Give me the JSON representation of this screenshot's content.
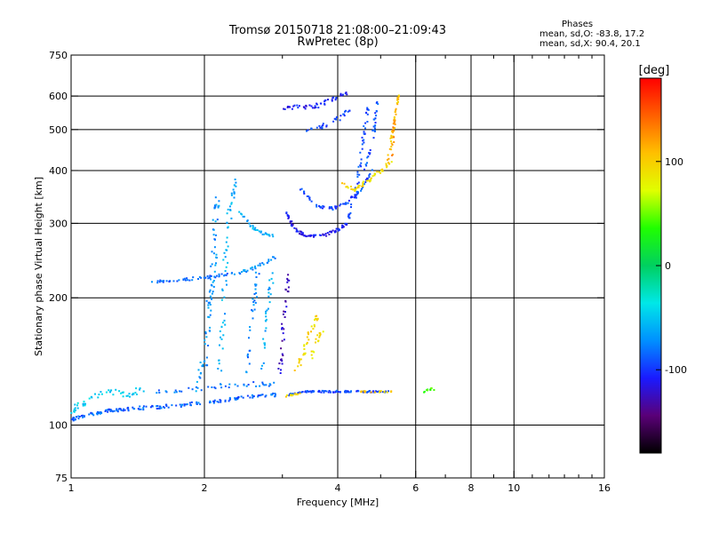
{
  "title": "Tromsø 20150718 21:08:00–21:09:43",
  "subtitle": "RwPretec (8p)",
  "phases": {
    "heading": "Phases",
    "o_line": "mean, sd,O: -83.8, 17.2",
    "x_line": "mean, sd,X:  90.4, 20.1"
  },
  "colorbar": {
    "label": "[deg]",
    "range": [
      -180,
      180
    ],
    "ticks": [
      {
        "value": 100,
        "label": "100"
      },
      {
        "value": 0,
        "label": "0"
      },
      {
        "value": -100,
        "label": "-100"
      }
    ],
    "stops": [
      "#000000",
      "#5a0078",
      "#1a1aff",
      "#0090ff",
      "#00e8e8",
      "#00d060",
      "#20ff00",
      "#e0ff00",
      "#ffc000",
      "#ff6000",
      "#ff0000"
    ]
  },
  "chart_data": {
    "type": "scatter",
    "title": "Tromsø 20150718 21:08:00–21:09:43",
    "subtitle": "RwPretec (8p)",
    "xlabel": "Frequency [MHz]",
    "ylabel": "Stationary phase Virtual Height [km]",
    "x_scale": "log",
    "y_scale": "log",
    "xlim": [
      1,
      16
    ],
    "ylim": [
      75,
      750
    ],
    "x_ticks": [
      {
        "value": 1,
        "label": "1"
      },
      {
        "value": 2,
        "label": "2"
      },
      {
        "value": 4,
        "label": "4"
      },
      {
        "value": 6,
        "label": "6"
      },
      {
        "value": 8,
        "label": "8"
      },
      {
        "value": 10,
        "label": "10"
      },
      {
        "value": 16,
        "label": "16"
      }
    ],
    "x_minor": [
      3,
      5,
      7,
      9,
      11,
      12,
      13,
      14,
      15
    ],
    "x_grid": [
      2,
      4,
      6,
      8,
      10
    ],
    "y_ticks": [
      {
        "value": 75,
        "label": "75"
      },
      {
        "value": 100,
        "label": "100"
      },
      {
        "value": 200,
        "label": "200"
      },
      {
        "value": 300,
        "label": "300"
      },
      {
        "value": 400,
        "label": "400"
      },
      {
        "value": 500,
        "label": "500"
      },
      {
        "value": 600,
        "label": "600"
      },
      {
        "value": 750,
        "label": "750"
      }
    ],
    "y_grid": [
      100,
      200,
      300,
      400,
      500,
      600
    ],
    "grid": true,
    "color_encoding": "phase [deg]",
    "traces": [
      {
        "kind": "curve",
        "points": [
          [
            1.0,
            103
          ],
          [
            1.1,
            106
          ],
          [
            1.2,
            108
          ],
          [
            1.3,
            109
          ],
          [
            1.5,
            110
          ],
          [
            1.7,
            111
          ],
          [
            2.0,
            113
          ],
          [
            2.3,
            115
          ],
          [
            2.6,
            117
          ],
          [
            2.9,
            118
          ]
        ],
        "phase": -85,
        "spread": 0.012,
        "density": 18
      },
      {
        "kind": "curve",
        "points": [
          [
            1.0,
            108
          ],
          [
            1.05,
            112
          ],
          [
            1.15,
            118
          ],
          [
            1.25,
            120
          ],
          [
            1.35,
            118
          ],
          [
            1.45,
            122
          ]
        ],
        "phase": -45,
        "spread": 0.02,
        "density": 10
      },
      {
        "kind": "curve",
        "points": [
          [
            1.5,
            119
          ],
          [
            1.8,
            121
          ],
          [
            2.2,
            124
          ],
          [
            2.6,
            125
          ],
          [
            2.9,
            125
          ]
        ],
        "phase": -80,
        "spread": 0.015,
        "density": 10
      },
      {
        "kind": "curve",
        "points": [
          [
            1.9,
            120
          ],
          [
            2.0,
            140
          ],
          [
            2.03,
            170
          ],
          [
            2.06,
            200
          ],
          [
            2.1,
            240
          ],
          [
            2.12,
            300
          ],
          [
            2.15,
            350
          ]
        ],
        "phase": -70,
        "spread": 0.03,
        "density": 14
      },
      {
        "kind": "curve",
        "points": [
          [
            2.15,
            125
          ],
          [
            2.2,
            170
          ],
          [
            2.22,
            220
          ],
          [
            2.25,
            280
          ],
          [
            2.3,
            340
          ],
          [
            2.35,
            380
          ]
        ],
        "phase": -60,
        "spread": 0.025,
        "density": 12
      },
      {
        "kind": "curve",
        "points": [
          [
            1.5,
            218
          ],
          [
            1.7,
            220
          ],
          [
            1.9,
            222
          ],
          [
            2.1,
            225
          ],
          [
            2.3,
            228
          ]
        ],
        "phase": -85,
        "spread": 0.01,
        "density": 12
      },
      {
        "kind": "curve",
        "points": [
          [
            2.3,
            226
          ],
          [
            2.5,
            232
          ],
          [
            2.7,
            240
          ],
          [
            2.9,
            250
          ]
        ],
        "phase": -70,
        "spread": 0.01,
        "density": 10
      },
      {
        "kind": "curve",
        "points": [
          [
            2.4,
            320
          ],
          [
            2.55,
            295
          ],
          [
            2.7,
            285
          ],
          [
            2.85,
            280
          ]
        ],
        "phase": -60,
        "spread": 0.01,
        "density": 10
      },
      {
        "kind": "curve",
        "points": [
          [
            2.5,
            130
          ],
          [
            2.55,
            170
          ],
          [
            2.6,
            200
          ],
          [
            2.65,
            240
          ]
        ],
        "phase": -75,
        "spread": 0.02,
        "density": 10
      },
      {
        "kind": "curve",
        "points": [
          [
            2.7,
            135
          ],
          [
            2.75,
            170
          ],
          [
            2.8,
            200
          ],
          [
            2.85,
            230
          ]
        ],
        "phase": -65,
        "spread": 0.02,
        "density": 10
      },
      {
        "kind": "curve",
        "points": [
          [
            2.95,
            130
          ],
          [
            3.0,
            160
          ],
          [
            3.05,
            190
          ],
          [
            3.1,
            230
          ]
        ],
        "phase": -125,
        "spread": 0.02,
        "density": 12
      },
      {
        "kind": "curve",
        "points": [
          [
            3.05,
            320
          ],
          [
            3.2,
            290
          ],
          [
            3.4,
            280
          ],
          [
            3.7,
            280
          ],
          [
            4.0,
            290
          ],
          [
            4.2,
            300
          ]
        ],
        "phase": -112,
        "spread": 0.01,
        "density": 16
      },
      {
        "kind": "curve",
        "points": [
          [
            3.3,
            360
          ],
          [
            3.6,
            330
          ],
          [
            3.9,
            325
          ],
          [
            4.2,
            335
          ],
          [
            4.5,
            360
          ],
          [
            4.8,
            400
          ]
        ],
        "phase": -95,
        "spread": 0.01,
        "density": 14
      },
      {
        "kind": "curve",
        "points": [
          [
            4.2,
            300
          ],
          [
            4.4,
            350
          ],
          [
            4.5,
            420
          ],
          [
            4.6,
            500
          ],
          [
            4.7,
            570
          ]
        ],
        "phase": -95,
        "spread": 0.015,
        "density": 12
      },
      {
        "kind": "curve",
        "points": [
          [
            4.6,
            400
          ],
          [
            4.75,
            450
          ],
          [
            4.85,
            520
          ],
          [
            4.95,
            600
          ]
        ],
        "phase": -90,
        "spread": 0.015,
        "density": 10
      },
      {
        "kind": "curve",
        "points": [
          [
            3.0,
            560
          ],
          [
            3.3,
            565
          ],
          [
            3.6,
            570
          ],
          [
            3.9,
            590
          ],
          [
            4.2,
            610
          ]
        ],
        "phase": -110,
        "spread": 0.015,
        "density": 12
      },
      {
        "kind": "curve",
        "points": [
          [
            3.4,
            500
          ],
          [
            3.7,
            510
          ],
          [
            4.0,
            530
          ],
          [
            4.3,
            560
          ]
        ],
        "phase": -100,
        "spread": 0.015,
        "density": 10
      },
      {
        "kind": "curve",
        "points": [
          [
            3.1,
            118
          ],
          [
            3.4,
            120
          ],
          [
            3.7,
            120
          ],
          [
            4.0,
            120
          ],
          [
            4.4,
            120
          ],
          [
            4.8,
            120
          ],
          [
            5.2,
            120
          ]
        ],
        "phase": -95,
        "spread": 0.006,
        "density": 16
      },
      {
        "kind": "curve",
        "points": [
          [
            3.0,
            117
          ],
          [
            3.2,
            118
          ],
          [
            3.3,
            119
          ]
        ],
        "phase": 95,
        "spread": 0.006,
        "density": 8
      },
      {
        "kind": "curve",
        "points": [
          [
            4.5,
            120
          ],
          [
            4.9,
            120
          ],
          [
            5.3,
            120
          ]
        ],
        "phase": 100,
        "spread": 0.006,
        "density": 8
      },
      {
        "kind": "curve",
        "points": [
          [
            3.2,
            130
          ],
          [
            3.35,
            150
          ],
          [
            3.5,
            170
          ],
          [
            3.6,
            180
          ]
        ],
        "phase": 95,
        "spread": 0.02,
        "density": 12
      },
      {
        "kind": "curve",
        "points": [
          [
            3.5,
            145
          ],
          [
            3.6,
            160
          ],
          [
            3.7,
            170
          ]
        ],
        "phase": 90,
        "spread": 0.02,
        "density": 8
      },
      {
        "kind": "curve",
        "points": [
          [
            4.1,
            370
          ],
          [
            4.4,
            360
          ],
          [
            4.7,
            380
          ],
          [
            5.0,
            400
          ],
          [
            5.3,
            420
          ]
        ],
        "phase": 95,
        "spread": 0.015,
        "density": 12
      },
      {
        "kind": "curve",
        "points": [
          [
            5.2,
            420
          ],
          [
            5.3,
            480
          ],
          [
            5.4,
            540
          ],
          [
            5.5,
            620
          ]
        ],
        "phase": 105,
        "spread": 0.012,
        "density": 12
      },
      {
        "kind": "curve",
        "points": [
          [
            5.3,
            430
          ],
          [
            5.35,
            500
          ],
          [
            5.45,
            580
          ]
        ],
        "phase": 125,
        "spread": 0.012,
        "density": 8
      },
      {
        "kind": "curve",
        "points": [
          [
            6.2,
            120
          ],
          [
            6.4,
            121
          ],
          [
            6.7,
            122
          ]
        ],
        "phase": 40,
        "spread": 0.01,
        "density": 6
      }
    ]
  }
}
